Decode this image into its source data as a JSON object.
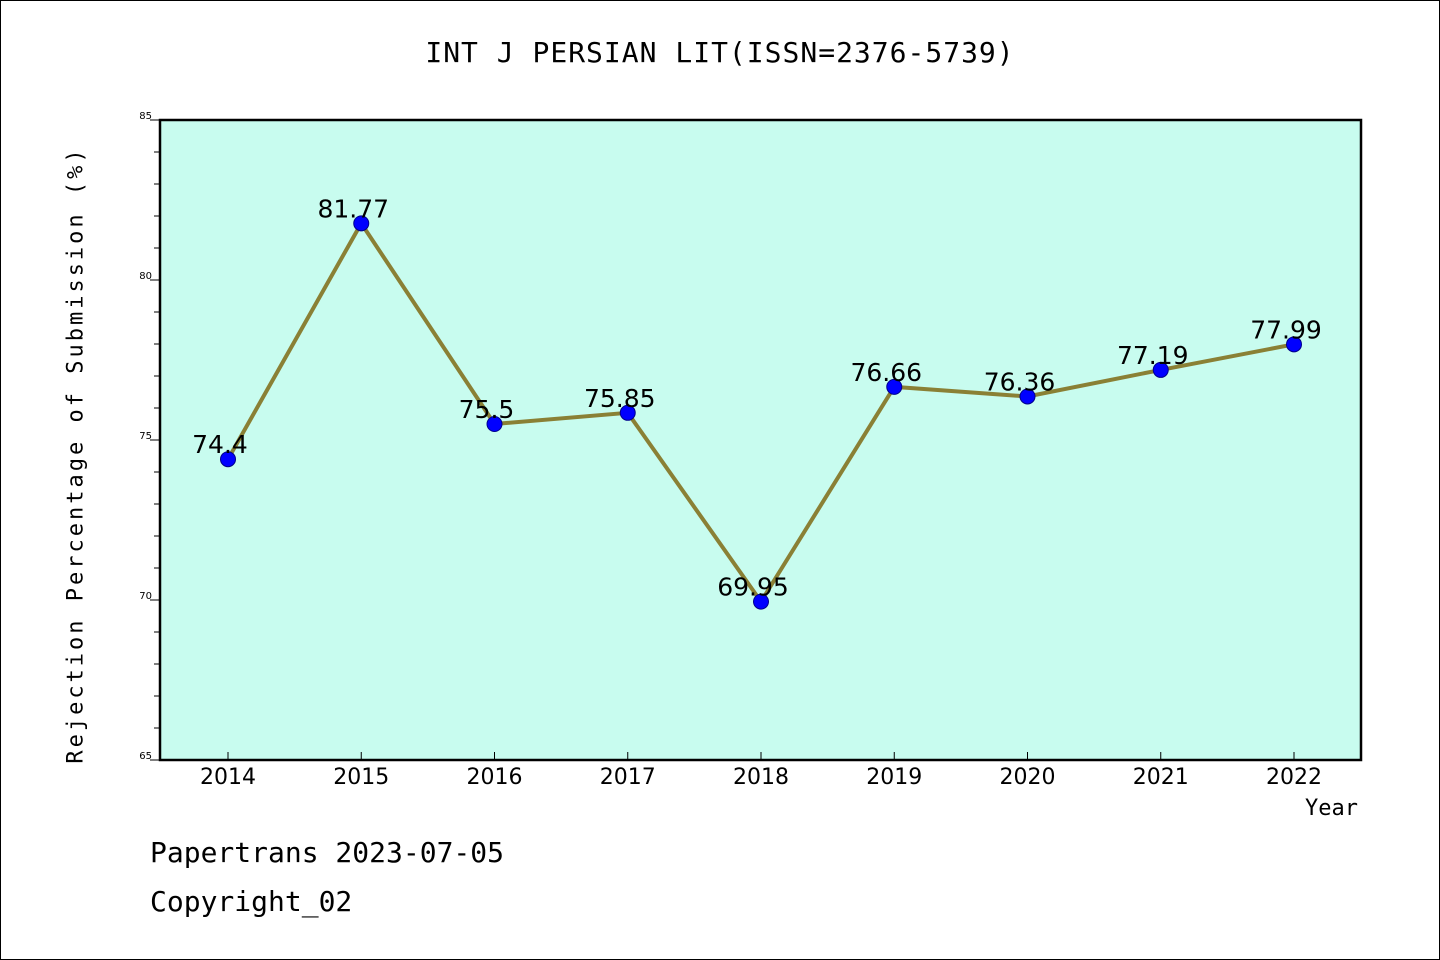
{
  "chart_data": {
    "type": "line",
    "title": "INT J PERSIAN LIT(ISSN=2376-5739)",
    "xlabel": "Year",
    "ylabel": "Rejection Percentage of Submission (%)",
    "categories": [
      "2014",
      "2015",
      "2016",
      "2017",
      "2018",
      "2019",
      "2020",
      "2021",
      "2022"
    ],
    "values": [
      74.4,
      81.77,
      75.5,
      75.85,
      69.95,
      76.66,
      76.36,
      77.19,
      77.99
    ],
    "data_labels": [
      "74.4",
      "81.77",
      "75.5",
      "75.85",
      "69.95",
      "76.66",
      "76.36",
      "77.19",
      "77.99"
    ],
    "ylim": [
      65,
      85
    ],
    "y_ticks": [
      65,
      70,
      75,
      80,
      85
    ],
    "y_tick_labels": [
      "65",
      "70",
      "75",
      "80",
      "85"
    ],
    "grid": false,
    "colors": {
      "plot_background": "#c8fcef",
      "line": "#8a8035",
      "marker": "#0000ff"
    }
  },
  "footer": {
    "line1": "Papertrans 2023-07-05",
    "line2": "Copyright_02"
  }
}
